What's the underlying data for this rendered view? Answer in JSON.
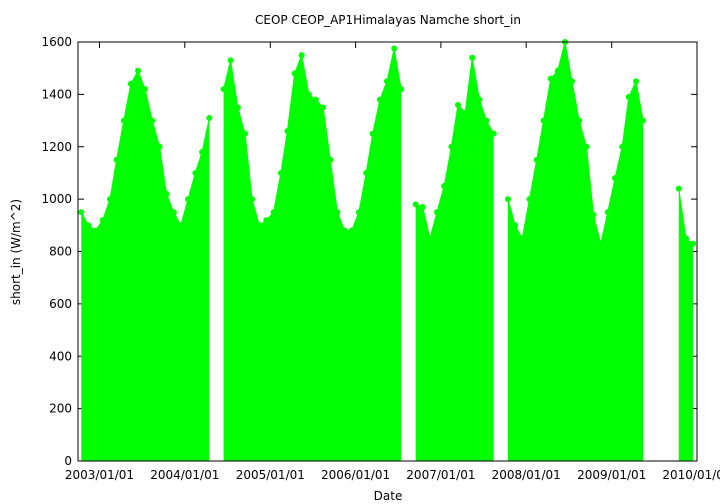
{
  "chart_data": {
    "type": "line",
    "title": "CEOP CEOP_AP1Himalayas Namche  short_in",
    "x_label": "Date",
    "y_label": "short_in (W/m^2)",
    "x": [
      "2002/10/15",
      "2002/11/15",
      "2002/12/15",
      "2003/01/15",
      "2003/02/15",
      "2003/03/15",
      "2003/04/15",
      "2003/05/15",
      "2003/06/15",
      "2003/07/15",
      "2003/08/15",
      "2003/09/15",
      "2003/10/15",
      "2003/11/15",
      "2003/12/15",
      "2004/01/15",
      "2004/02/15",
      "2004/03/15",
      "2004/04/15",
      "2004/05/15",
      "2004/06/15",
      "2004/07/15",
      "2004/08/15",
      "2004/09/15",
      "2004/10/15",
      "2004/11/15",
      "2004/12/15",
      "2005/01/15",
      "2005/02/15",
      "2005/03/15",
      "2005/04/15",
      "2005/05/15",
      "2005/06/15",
      "2005/07/15",
      "2005/08/15",
      "2005/09/15",
      "2005/10/15",
      "2005/11/15",
      "2005/12/15",
      "2006/01/15",
      "2006/02/15",
      "2006/03/15",
      "2006/04/15",
      "2006/05/15",
      "2006/06/15",
      "2006/07/15",
      "2006/08/15",
      "2006/09/15",
      "2006/10/15",
      "2006/11/15",
      "2006/12/15",
      "2007/01/15",
      "2007/02/15",
      "2007/03/15",
      "2007/04/15",
      "2007/05/15",
      "2007/06/15",
      "2007/07/15",
      "2007/08/15",
      "2007/09/15",
      "2007/10/15",
      "2007/11/15",
      "2007/12/15",
      "2008/01/15",
      "2008/02/15",
      "2008/03/15",
      "2008/04/15",
      "2008/05/15",
      "2008/06/15",
      "2008/07/15",
      "2008/08/15",
      "2008/09/15",
      "2008/10/15",
      "2008/11/15",
      "2008/12/15",
      "2009/01/15",
      "2009/02/15",
      "2009/03/15",
      "2009/04/15",
      "2009/05/15",
      "2009/06/15",
      "2009/07/15",
      "2009/08/15",
      "2009/09/15",
      "2009/10/15",
      "2009/11/15",
      "2009/12/15"
    ],
    "series": [
      {
        "name": "short_in",
        "color": "#00ff00",
        "values": [
          950,
          900,
          880,
          920,
          1000,
          1150,
          1300,
          1440,
          1490,
          1420,
          1300,
          1200,
          1020,
          950,
          900,
          1000,
          1100,
          1180,
          1310,
          null,
          1420,
          1530,
          1350,
          1250,
          1000,
          900,
          920,
          950,
          1100,
          1260,
          1480,
          1550,
          1400,
          1380,
          1350,
          1150,
          950,
          880,
          880,
          950,
          1100,
          1250,
          1380,
          1450,
          1575,
          1420,
          null,
          980,
          970,
          850,
          950,
          1050,
          1200,
          1360,
          1330,
          1540,
          1380,
          1300,
          1250,
          null,
          1000,
          900,
          850,
          1000,
          1150,
          1300,
          1460,
          1490,
          1600,
          1450,
          1300,
          1200,
          940,
          830,
          950,
          1080,
          1200,
          1390,
          1450,
          1300,
          null,
          null,
          null,
          null,
          1040,
          850,
          830
        ]
      }
    ],
    "xlim": [
      "2002/10/01",
      "2010/01/01"
    ],
    "xticks": [
      "2003/01/01",
      "2004/01/01",
      "2005/01/01",
      "2006/01/01",
      "2007/01/01",
      "2008/01/01",
      "2009/01/01",
      "2010/01/01"
    ],
    "ylim": [
      0,
      1600
    ],
    "yticks": [
      0,
      200,
      400,
      600,
      800,
      1000,
      1200,
      1400,
      1600
    ]
  }
}
